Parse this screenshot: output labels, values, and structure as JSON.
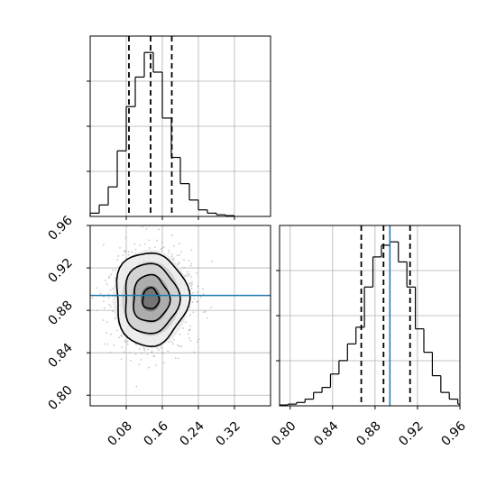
{
  "chart_data": {
    "type": "corner",
    "colors": {
      "truth": "#1f77b4",
      "hist": "#000000",
      "grid": "#b0b0b0",
      "frame": "#000000"
    },
    "panels": [
      {
        "id": "hist-param-1",
        "type": "histogram",
        "xlim": [
          0.0,
          0.4
        ],
        "bins": [
          {
            "x0": 0.0,
            "x1": 0.02,
            "count": 2
          },
          {
            "x0": 0.02,
            "x1": 0.04,
            "count": 7
          },
          {
            "x0": 0.04,
            "x1": 0.06,
            "count": 18
          },
          {
            "x0": 0.06,
            "x1": 0.08,
            "count": 40
          },
          {
            "x0": 0.08,
            "x1": 0.1,
            "count": 67
          },
          {
            "x0": 0.1,
            "x1": 0.12,
            "count": 85
          },
          {
            "x0": 0.12,
            "x1": 0.14,
            "count": 100
          },
          {
            "x0": 0.14,
            "x1": 0.16,
            "count": 88
          },
          {
            "x0": 0.16,
            "x1": 0.18,
            "count": 60
          },
          {
            "x0": 0.18,
            "x1": 0.2,
            "count": 36
          },
          {
            "x0": 0.2,
            "x1": 0.22,
            "count": 20
          },
          {
            "x0": 0.22,
            "x1": 0.24,
            "count": 10
          },
          {
            "x0": 0.24,
            "x1": 0.26,
            "count": 4
          },
          {
            "x0": 0.26,
            "x1": 0.28,
            "count": 2
          },
          {
            "x0": 0.28,
            "x1": 0.3,
            "count": 1
          },
          {
            "x0": 0.3,
            "x1": 0.32,
            "count": 0.5
          }
        ],
        "quantile_lines": [
          0.086,
          0.134,
          0.181
        ],
        "xticks": [
          0.08,
          0.16,
          0.24,
          0.32
        ]
      },
      {
        "id": "hist-param-2",
        "type": "histogram",
        "xlim": [
          0.79,
          0.96
        ],
        "bins": [
          {
            "x0": 0.79,
            "x1": 0.798,
            "count": 0.5
          },
          {
            "x0": 0.798,
            "x1": 0.806,
            "count": 1
          },
          {
            "x0": 0.806,
            "x1": 0.814,
            "count": 2
          },
          {
            "x0": 0.814,
            "x1": 0.822,
            "count": 4
          },
          {
            "x0": 0.822,
            "x1": 0.83,
            "count": 8
          },
          {
            "x0": 0.83,
            "x1": 0.838,
            "count": 11
          },
          {
            "x0": 0.838,
            "x1": 0.846,
            "count": 19
          },
          {
            "x0": 0.846,
            "x1": 0.854,
            "count": 27
          },
          {
            "x0": 0.854,
            "x1": 0.862,
            "count": 37
          },
          {
            "x0": 0.862,
            "x1": 0.87,
            "count": 47
          },
          {
            "x0": 0.87,
            "x1": 0.878,
            "count": 71
          },
          {
            "x0": 0.878,
            "x1": 0.886,
            "count": 89
          },
          {
            "x0": 0.886,
            "x1": 0.894,
            "count": 96
          },
          {
            "x0": 0.894,
            "x1": 0.902,
            "count": 98
          },
          {
            "x0": 0.902,
            "x1": 0.91,
            "count": 86
          },
          {
            "x0": 0.91,
            "x1": 0.918,
            "count": 71
          },
          {
            "x0": 0.918,
            "x1": 0.926,
            "count": 46
          },
          {
            "x0": 0.926,
            "x1": 0.934,
            "count": 32
          },
          {
            "x0": 0.934,
            "x1": 0.942,
            "count": 18
          },
          {
            "x0": 0.942,
            "x1": 0.95,
            "count": 8
          },
          {
            "x0": 0.95,
            "x1": 0.958,
            "count": 4
          },
          {
            "x0": 0.958,
            "x1": 0.96,
            "count": 1
          }
        ],
        "quantile_lines": [
          0.867,
          0.888,
          0.913
        ],
        "truth_line": 0.894,
        "xticks": [
          0.8,
          0.84,
          0.88,
          0.92,
          0.96
        ],
        "xtick_labels": [
          "0.80",
          "0.84",
          "0.88",
          "0.92",
          "0.96"
        ]
      },
      {
        "id": "joint-param-1-param-2",
        "type": "2d-density",
        "xlim": [
          0.0,
          0.4
        ],
        "ylim": [
          0.79,
          0.96
        ],
        "center": [
          0.134,
          0.891
        ],
        "sigma": [
          0.04,
          0.022
        ],
        "truth_line_y": 0.894,
        "xticks": [
          0.08,
          0.16,
          0.24,
          0.32
        ],
        "xtick_labels": [
          "0.08",
          "0.16",
          "0.24",
          "0.32"
        ],
        "yticks": [
          0.8,
          0.84,
          0.88,
          0.92,
          0.96
        ],
        "ytick_labels": [
          "0.80",
          "0.84",
          "0.88",
          "0.92",
          "0.96"
        ]
      }
    ]
  }
}
